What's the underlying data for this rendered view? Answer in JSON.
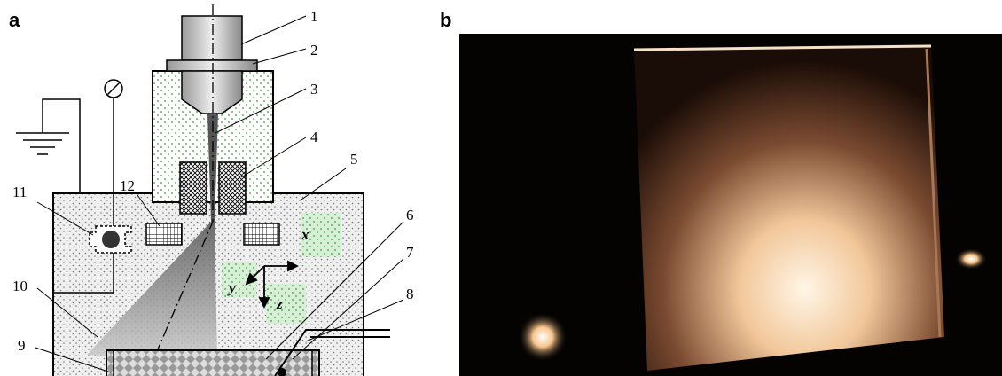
{
  "panels": [
    {
      "label": "a"
    },
    {
      "label": "b"
    }
  ],
  "callouts": [
    "1",
    "2",
    "3",
    "4",
    "5",
    "6",
    "7",
    "8",
    "9",
    "10",
    "11",
    "12"
  ],
  "axes": [
    "x",
    "y",
    "z"
  ]
}
